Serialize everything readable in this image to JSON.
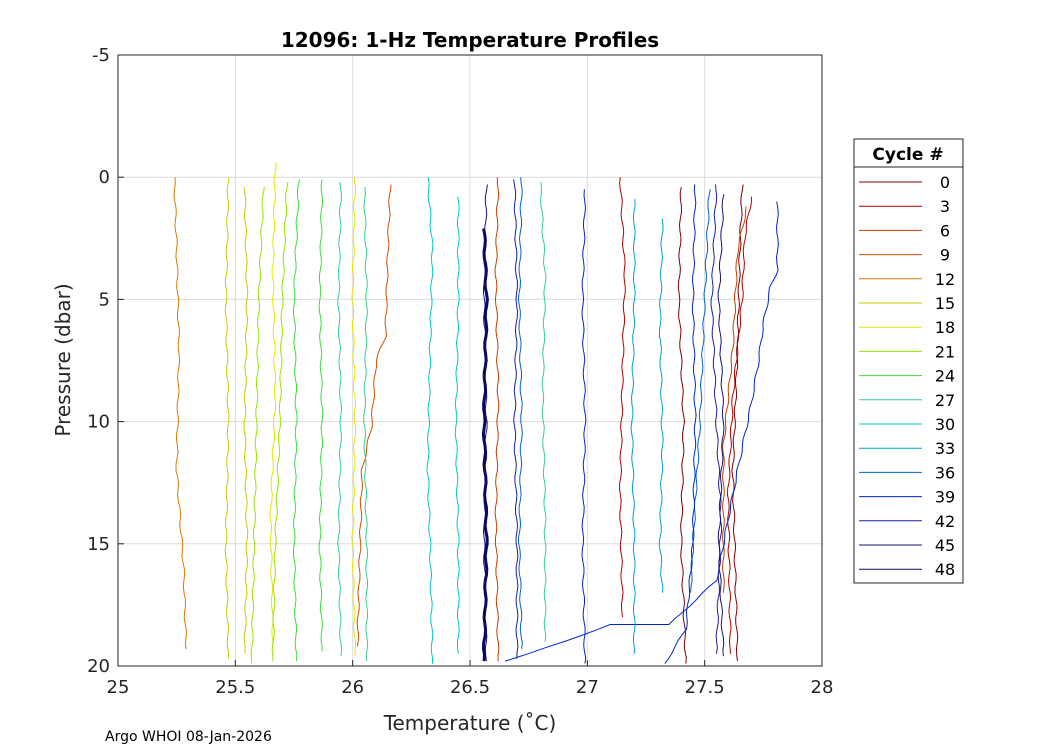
{
  "chart_data": {
    "type": "line",
    "title": "12096: 1-Hz Temperature Profiles",
    "xlabel": "Temperature (˚C)",
    "ylabel": "Pressure (dbar)",
    "xlim": [
      25,
      28
    ],
    "ylim": [
      -5,
      20
    ],
    "y_reversed": true,
    "grid": true,
    "xticks": [
      "25",
      "25.5",
      "26",
      "26.5",
      "27",
      "27.5",
      "28"
    ],
    "yticks": [
      "-5",
      "0",
      "5",
      "10",
      "15",
      "20"
    ],
    "legend": {
      "title": "Cycle #",
      "placement": "right-outside",
      "entries": [
        "0",
        "3",
        "6",
        "9",
        "12",
        "15",
        "18",
        "21",
        "24",
        "27",
        "30",
        "33",
        "36",
        "39",
        "42",
        "45",
        "48"
      ],
      "colors": [
        "#800000",
        "#b40000",
        "#c83c00",
        "#d25000",
        "#dc7800",
        "#d2c800",
        "#e6e600",
        "#96e600",
        "#3cdc3c",
        "#32d28c",
        "#00c8c8",
        "#00a0d2",
        "#0064c8",
        "#0028c8",
        "#1e1ea0",
        "#141478",
        "#0a0a64"
      ]
    },
    "series": [
      {
        "name": "0",
        "color": "#800000",
        "points": [
          [
            27.66,
            0.3
          ],
          [
            27.65,
            3
          ],
          [
            27.64,
            7
          ],
          [
            27.62,
            12
          ],
          [
            27.63,
            16
          ],
          [
            27.64,
            19.8
          ]
        ]
      },
      {
        "name": "0",
        "color": "#800000",
        "points": [
          [
            27.4,
            0.4
          ],
          [
            27.39,
            5
          ],
          [
            27.41,
            10
          ],
          [
            27.4,
            15
          ],
          [
            27.42,
            19.9
          ]
        ]
      },
      {
        "name": "3",
        "color": "#b40000",
        "points": [
          [
            27.7,
            0.8
          ],
          [
            27.67,
            2.5
          ],
          [
            27.66,
            5
          ],
          [
            27.62,
            9
          ],
          [
            27.6,
            13
          ],
          [
            27.61,
            19.5
          ]
        ]
      },
      {
        "name": "3",
        "color": "#b40000",
        "points": [
          [
            27.14,
            0.0
          ],
          [
            27.16,
            4
          ],
          [
            27.15,
            8
          ],
          [
            27.14,
            13
          ],
          [
            27.15,
            18.0
          ]
        ]
      },
      {
        "name": "6",
        "color": "#c83c00",
        "points": [
          [
            26.62,
            0.0
          ],
          [
            26.61,
            4
          ],
          [
            26.62,
            9
          ],
          [
            26.61,
            14
          ],
          [
            26.62,
            19.8
          ]
        ]
      },
      {
        "name": "6",
        "color": "#c83c00",
        "points": [
          [
            27.68,
            1.2
          ],
          [
            27.64,
            3
          ],
          [
            27.62,
            7
          ],
          [
            27.58,
            11
          ],
          [
            27.58,
            17
          ]
        ]
      },
      {
        "name": "9",
        "color": "#d25000",
        "points": [
          [
            26.16,
            0.3
          ],
          [
            26.15,
            3
          ],
          [
            26.14,
            6.5
          ],
          [
            26.1,
            7.5
          ],
          [
            26.08,
            10.2
          ],
          [
            26.04,
            12
          ],
          [
            26.02,
            19.2
          ]
        ]
      },
      {
        "name": "12",
        "color": "#dc7800",
        "points": [
          [
            25.24,
            0.0
          ],
          [
            25.25,
            3
          ],
          [
            25.26,
            7
          ],
          [
            25.25,
            12
          ],
          [
            25.28,
            16
          ],
          [
            25.29,
            19.3
          ]
        ]
      },
      {
        "name": "15",
        "color": "#d2c800",
        "points": [
          [
            25.47,
            0.0
          ],
          [
            25.46,
            5
          ],
          [
            25.47,
            10
          ],
          [
            25.46,
            15
          ],
          [
            25.47,
            19.7
          ]
        ]
      },
      {
        "name": "15",
        "color": "#d2c800",
        "points": [
          [
            25.54,
            0.4
          ],
          [
            25.55,
            5
          ],
          [
            25.54,
            10
          ],
          [
            25.55,
            15
          ],
          [
            25.54,
            19.5
          ]
        ]
      },
      {
        "name": "18",
        "color": "#e6e600",
        "points": [
          [
            25.67,
            -0.6
          ],
          [
            25.66,
            4
          ],
          [
            25.67,
            9
          ],
          [
            25.65,
            14
          ],
          [
            25.66,
            19.0
          ]
        ]
      },
      {
        "name": "18",
        "color": "#e6e600",
        "points": [
          [
            26.01,
            0.0
          ],
          [
            26.0,
            5
          ],
          [
            26.01,
            10
          ],
          [
            26.0,
            15
          ],
          [
            26.01,
            19.6
          ]
        ]
      },
      {
        "name": "21",
        "color": "#96e600",
        "points": [
          [
            25.62,
            0.4
          ],
          [
            25.6,
            5
          ],
          [
            25.59,
            10
          ],
          [
            25.58,
            15
          ],
          [
            25.57,
            19.9
          ]
        ]
      },
      {
        "name": "21",
        "color": "#96e600",
        "points": [
          [
            25.72,
            0.2
          ],
          [
            25.7,
            5
          ],
          [
            25.69,
            10
          ],
          [
            25.67,
            15
          ],
          [
            25.66,
            19.8
          ]
        ]
      },
      {
        "name": "24",
        "color": "#3cdc3c",
        "points": [
          [
            25.77,
            0.1
          ],
          [
            25.75,
            5
          ],
          [
            25.76,
            10
          ],
          [
            25.75,
            15
          ],
          [
            25.76,
            19.8
          ]
        ]
      },
      {
        "name": "24",
        "color": "#3cdc3c",
        "points": [
          [
            25.87,
            0.1
          ],
          [
            25.86,
            5
          ],
          [
            25.87,
            10
          ],
          [
            25.86,
            15
          ],
          [
            25.87,
            19.4
          ]
        ]
      },
      {
        "name": "27",
        "color": "#32d28c",
        "points": [
          [
            25.95,
            0.2
          ],
          [
            25.94,
            5
          ],
          [
            25.95,
            10
          ],
          [
            25.94,
            15
          ],
          [
            25.95,
            19.6
          ]
        ]
      },
      {
        "name": "27",
        "color": "#32d28c",
        "points": [
          [
            26.05,
            0.4
          ],
          [
            26.06,
            5
          ],
          [
            26.05,
            10
          ],
          [
            26.06,
            15
          ],
          [
            26.06,
            19.8
          ]
        ]
      },
      {
        "name": "27",
        "color": "#32d28c",
        "points": [
          [
            26.8,
            0.2
          ],
          [
            26.82,
            4
          ],
          [
            26.81,
            9
          ],
          [
            26.82,
            14
          ],
          [
            26.82,
            19.0
          ]
        ]
      },
      {
        "name": "30",
        "color": "#00c8c8",
        "points": [
          [
            26.32,
            0.0
          ],
          [
            26.34,
            3
          ],
          [
            26.33,
            7
          ],
          [
            26.32,
            12
          ],
          [
            26.33,
            15
          ],
          [
            26.34,
            19.9
          ]
        ]
      },
      {
        "name": "30",
        "color": "#00c8c8",
        "points": [
          [
            26.45,
            0.8
          ],
          [
            26.45,
            5
          ],
          [
            26.44,
            10
          ],
          [
            26.45,
            15
          ],
          [
            26.45,
            19.5
          ]
        ]
      },
      {
        "name": "33",
        "color": "#00a0d2",
        "points": [
          [
            27.2,
            0.9
          ],
          [
            27.2,
            5
          ],
          [
            27.19,
            10
          ],
          [
            27.2,
            15
          ],
          [
            27.2,
            19.5
          ]
        ]
      },
      {
        "name": "33",
        "color": "#00a0d2",
        "points": [
          [
            27.32,
            1.7
          ],
          [
            27.31,
            6
          ],
          [
            27.32,
            11
          ],
          [
            27.31,
            15
          ],
          [
            27.32,
            17
          ]
        ]
      },
      {
        "name": "36",
        "color": "#0064c8",
        "points": [
          [
            26.72,
            0.0
          ],
          [
            26.71,
            5
          ],
          [
            26.72,
            10
          ],
          [
            26.71,
            15
          ],
          [
            26.72,
            19.3
          ]
        ]
      },
      {
        "name": "36",
        "color": "#0064c8",
        "points": [
          [
            27.52,
            0.5
          ],
          [
            27.5,
            5
          ],
          [
            27.48,
            10
          ],
          [
            27.45,
            15
          ],
          [
            27.44,
            17
          ]
        ]
      },
      {
        "name": "39",
        "color": "#0028c8",
        "points": [
          [
            27.81,
            1.0
          ],
          [
            27.81,
            3.8
          ],
          [
            27.78,
            4.5
          ],
          [
            27.75,
            6
          ],
          [
            27.73,
            7.5
          ],
          [
            27.7,
            9.2
          ],
          [
            27.64,
            12
          ],
          [
            27.55,
            16.5
          ],
          [
            27.35,
            18.3
          ],
          [
            27.1,
            18.3
          ],
          [
            26.9,
            19.0
          ],
          [
            26.75,
            19.5
          ],
          [
            26.65,
            19.8
          ]
        ]
      },
      {
        "name": "39",
        "color": "#0028c8",
        "points": [
          [
            26.99,
            0.5
          ],
          [
            26.98,
            5
          ],
          [
            26.99,
            10
          ],
          [
            26.98,
            15
          ],
          [
            26.99,
            19.9
          ]
        ]
      },
      {
        "name": "39",
        "color": "#0028c8",
        "points": [
          [
            27.46,
            0.3
          ],
          [
            27.45,
            5
          ],
          [
            27.46,
            10
          ],
          [
            27.45,
            15
          ],
          [
            27.42,
            18.5
          ],
          [
            27.33,
            19.9
          ]
        ]
      },
      {
        "name": "42",
        "color": "#1e1ea0",
        "points": [
          [
            27.55,
            0.3
          ],
          [
            27.53,
            5
          ],
          [
            27.55,
            10
          ],
          [
            27.57,
            14
          ],
          [
            27.55,
            19.5
          ]
        ]
      },
      {
        "name": "42",
        "color": "#1e1ea0",
        "points": [
          [
            26.69,
            0.1
          ],
          [
            26.7,
            5
          ],
          [
            26.69,
            10
          ],
          [
            26.7,
            15
          ],
          [
            26.7,
            19.7
          ]
        ]
      },
      {
        "name": "45",
        "color": "#141478",
        "points": [
          [
            27.58,
            0.7
          ],
          [
            27.56,
            5
          ],
          [
            27.58,
            10
          ],
          [
            27.56,
            15
          ],
          [
            27.58,
            19.6
          ]
        ]
      },
      {
        "name": "45",
        "color": "#141478",
        "points": [
          [
            26.57,
            0.3
          ],
          [
            26.56,
            5
          ],
          [
            26.57,
            10
          ],
          [
            26.56,
            15
          ],
          [
            26.57,
            19.8
          ]
        ]
      },
      {
        "name": "48",
        "color": "#0a0a64",
        "width": 3,
        "points": [
          [
            26.56,
            2.1
          ],
          [
            26.57,
            5
          ],
          [
            26.56,
            10
          ],
          [
            26.57,
            15
          ],
          [
            26.56,
            19.8
          ]
        ]
      }
    ]
  },
  "footer": "Argo WHOI 08-Jan-2026"
}
